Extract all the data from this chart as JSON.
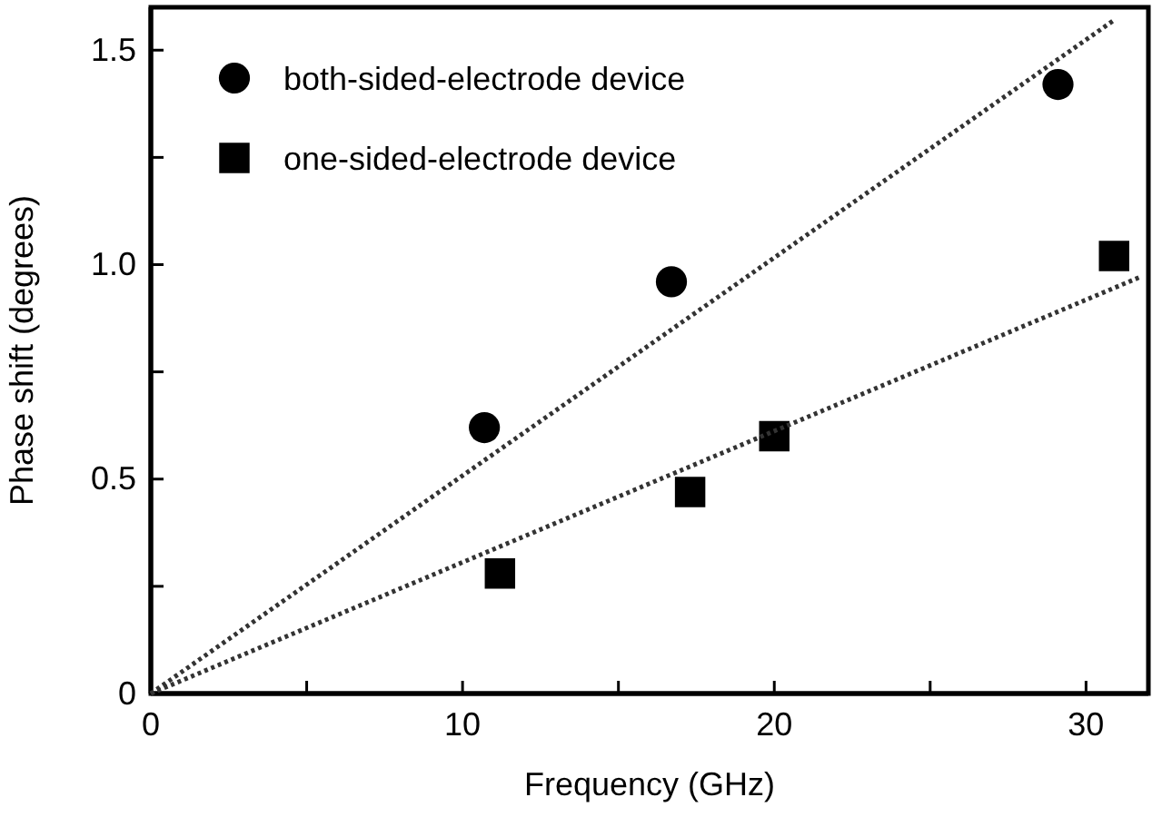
{
  "chart_data": {
    "type": "scatter",
    "xlabel": "Frequency (GHz)",
    "ylabel": "Phase shift (degrees)",
    "xlim": [
      0,
      32
    ],
    "xticks": [
      0,
      {
        "value": 5,
        "label": null
      },
      10,
      {
        "value": 15,
        "label": null
      },
      20,
      {
        "value": 25,
        "label": null
      },
      30
    ],
    "ylim": [
      0,
      1.6
    ],
    "yticks": [
      0,
      {
        "value": 0.25,
        "label": null
      },
      0.5,
      {
        "value": 0.75,
        "label": null
      },
      {
        "value": 1.0,
        "label": "1.0"
      },
      {
        "value": 1.25,
        "label": null
      },
      1.5
    ],
    "legend": "top left",
    "grid": false,
    "series": [
      {
        "name": "both-sided-electrode device",
        "color": "#000000",
        "marker": "circle",
        "x": [
          10.7,
          16.7,
          29.1
        ],
        "values": [
          0.62,
          0.96,
          1.42
        ]
      },
      {
        "name": "one-sided-electrode device",
        "color": "#000000",
        "marker": "square",
        "x": [
          11.2,
          17.3,
          20.0,
          30.9
        ],
        "values": [
          0.28,
          0.47,
          0.6,
          1.02
        ]
      },
      {
        "type": "line",
        "color": "#333333",
        "marker": "none",
        "line_style": "dotted",
        "x": [
          0,
          30.9
        ],
        "values": [
          0,
          1.57
        ]
      },
      {
        "type": "line",
        "color": "#333333",
        "marker": "none",
        "line_style": "dotted",
        "x": [
          0,
          31.7
        ],
        "values": [
          0,
          0.97
        ]
      }
    ]
  }
}
